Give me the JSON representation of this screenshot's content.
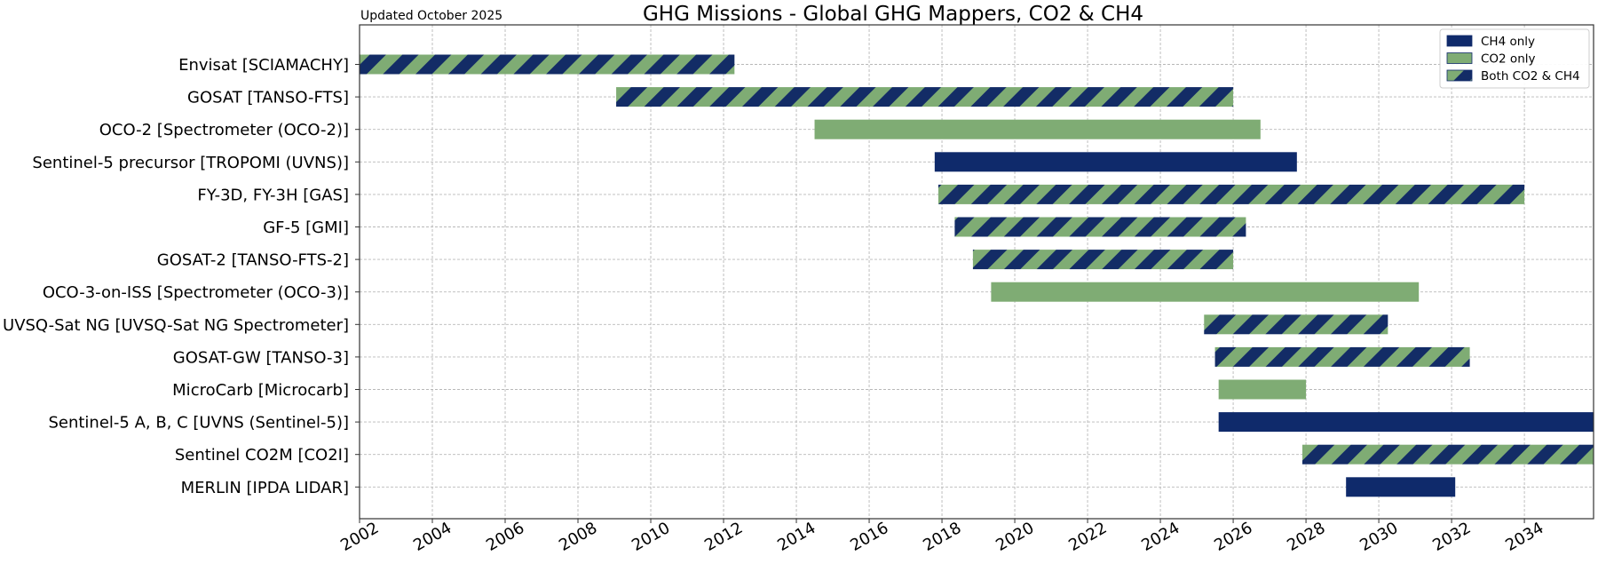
{
  "chart_data": {
    "type": "gantt",
    "title": "GHG Missions - Global GHG Mappers, CO2 & CH4",
    "note": "Updated October 2025",
    "xlim": [
      2002,
      2035.9
    ],
    "x_ticks": [
      "2002",
      "2004",
      "2006",
      "2008",
      "2010",
      "2012",
      "2014",
      "2016",
      "2018",
      "2020",
      "2022",
      "2024",
      "2026",
      "2028",
      "2030",
      "2032",
      "2034"
    ],
    "grid": true,
    "legend_position": "top-right",
    "legend": [
      {
        "category": "ch4",
        "label": "CH4 only"
      },
      {
        "category": "co2",
        "label": "CO2 only"
      },
      {
        "category": "both",
        "label": "Both CO2 & CH4"
      }
    ],
    "colors": {
      "ch4": "#0f2a6b",
      "co2": "#7fac74",
      "both_stripe": "#132c66",
      "grid": "#b8b8b8"
    },
    "missions": [
      {
        "label": "Envisat [SCIAMACHY]",
        "start": 2002.0,
        "end": 2012.3,
        "category": "both"
      },
      {
        "label": "GOSAT [TANSO-FTS]",
        "start": 2009.05,
        "end": 2026.0,
        "category": "both"
      },
      {
        "label": "OCO-2 [Spectrometer (OCO-2)]",
        "start": 2014.5,
        "end": 2026.75,
        "category": "co2"
      },
      {
        "label": "Sentinel-5 precursor [TROPOMI (UVNS)]",
        "start": 2017.8,
        "end": 2027.75,
        "category": "ch4"
      },
      {
        "label": "FY-3D, FY-3H [GAS]",
        "start": 2017.9,
        "end": 2034.0,
        "category": "both"
      },
      {
        "label": "GF-5 [GMI]",
        "start": 2018.35,
        "end": 2026.35,
        "category": "both"
      },
      {
        "label": "GOSAT-2 [TANSO-FTS-2]",
        "start": 2018.85,
        "end": 2026.0,
        "category": "both"
      },
      {
        "label": "OCO-3-on-ISS [Spectrometer (OCO-3)]",
        "start": 2019.35,
        "end": 2031.1,
        "category": "co2"
      },
      {
        "label": "UVSQ-Sat NG [UVSQ-Sat NG Spectrometer]",
        "start": 2025.2,
        "end": 2030.25,
        "category": "both"
      },
      {
        "label": "GOSAT-GW [TANSO-3]",
        "start": 2025.5,
        "end": 2032.5,
        "category": "both"
      },
      {
        "label": "MicroCarb [Microcarb]",
        "start": 2025.6,
        "end": 2028.0,
        "category": "co2"
      },
      {
        "label": "Sentinel-5 A, B, C [UVNS (Sentinel-5)]",
        "start": 2025.6,
        "end": 2035.9,
        "category": "ch4"
      },
      {
        "label": "Sentinel CO2M [CO2I]",
        "start": 2027.9,
        "end": 2035.9,
        "category": "both"
      },
      {
        "label": "MERLIN [IPDA LIDAR]",
        "start": 2029.1,
        "end": 2032.1,
        "category": "ch4"
      }
    ]
  }
}
